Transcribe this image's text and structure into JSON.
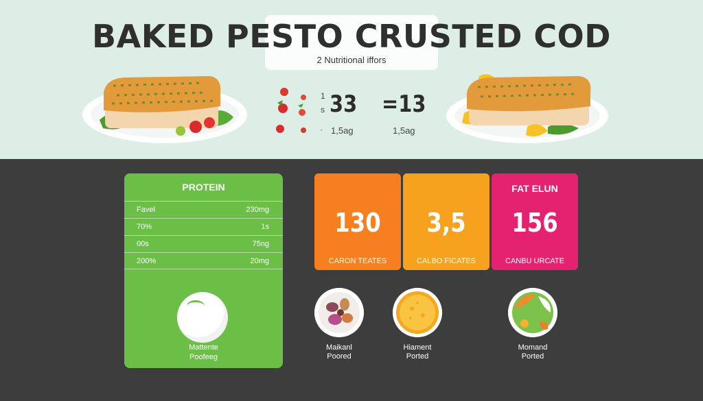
{
  "title": "BAKED PESTO CRUSTED COD",
  "subtitle": "2 Nutritional iffors",
  "colors": {
    "protein": "#6cbf46",
    "orange": "#f6801f",
    "amber": "#f7a21e",
    "pink": "#e5226f"
  },
  "center_stats": {
    "prefix_top": "1",
    "prefix_bottom": "s",
    "value_left": "33",
    "value_right": "=13",
    "dot": "·",
    "sub_left": "1,5ag",
    "sub_right": "1,5ag"
  },
  "protein": {
    "title": "PROTEIN",
    "rows": [
      {
        "label": "Favel",
        "value": "230mg"
      },
      {
        "label": "70%",
        "value": "1s"
      },
      {
        "label": "00s",
        "value": "75ng"
      },
      {
        "label": "200%",
        "value": "20mg"
      }
    ],
    "caption_line1": "Mattente",
    "caption_line2": "Poofeeg"
  },
  "stats": [
    {
      "head": "",
      "value": "130",
      "label": "CARON TEATES"
    },
    {
      "head": "",
      "value": "3,5",
      "label": "CALBO FICATES"
    },
    {
      "head": "FAT ELUN",
      "value": "156",
      "label": "CANBU URCATE"
    }
  ],
  "portions": [
    {
      "line1": "Maikanl",
      "line2": "Poored"
    },
    {
      "line1": "Hiament",
      "line2": "Ported"
    },
    {
      "line1": "Momand",
      "line2": "Ported"
    }
  ]
}
